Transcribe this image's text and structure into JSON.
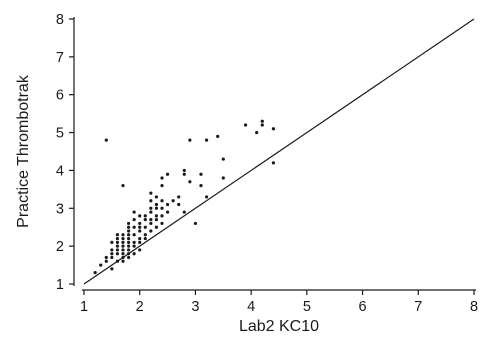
{
  "chart_data": {
    "type": "scatter",
    "title": "",
    "xlabel": "Lab2 KC10",
    "ylabel": "Practice Thrombotrak",
    "xlim": [
      1,
      8
    ],
    "ylim": [
      1,
      8
    ],
    "x_ticks": [
      "1",
      "2",
      "3",
      "4",
      "5",
      "6",
      "7",
      "8"
    ],
    "y_ticks": [
      "1",
      "2",
      "3",
      "4",
      "5",
      "6",
      "7",
      "8"
    ],
    "grid": false,
    "legend": "none",
    "reference_line": {
      "label": "",
      "points": [
        [
          1,
          1
        ],
        [
          8,
          8
        ]
      ]
    },
    "points": [
      [
        1.2,
        1.3
      ],
      [
        1.3,
        1.5
      ],
      [
        1.4,
        1.6
      ],
      [
        1.4,
        1.7
      ],
      [
        1.5,
        1.7
      ],
      [
        1.5,
        1.8
      ],
      [
        1.5,
        1.9
      ],
      [
        1.5,
        2.1
      ],
      [
        1.5,
        1.4
      ],
      [
        1.6,
        1.6
      ],
      [
        1.6,
        1.8
      ],
      [
        1.6,
        1.9
      ],
      [
        1.6,
        2.0
      ],
      [
        1.6,
        2.1
      ],
      [
        1.6,
        2.2
      ],
      [
        1.6,
        2.3
      ],
      [
        1.7,
        1.6
      ],
      [
        1.7,
        1.7
      ],
      [
        1.7,
        1.8
      ],
      [
        1.7,
        1.9
      ],
      [
        1.7,
        2.0
      ],
      [
        1.7,
        2.1
      ],
      [
        1.7,
        2.2
      ],
      [
        1.7,
        2.3
      ],
      [
        1.8,
        1.7
      ],
      [
        1.8,
        1.8
      ],
      [
        1.8,
        1.9
      ],
      [
        1.8,
        2.0
      ],
      [
        1.8,
        2.1
      ],
      [
        1.8,
        2.2
      ],
      [
        1.8,
        2.3
      ],
      [
        1.8,
        2.4
      ],
      [
        1.8,
        2.5
      ],
      [
        1.8,
        2.6
      ],
      [
        1.9,
        1.8
      ],
      [
        1.9,
        2.0
      ],
      [
        1.9,
        2.1
      ],
      [
        1.9,
        2.3
      ],
      [
        1.9,
        2.5
      ],
      [
        1.9,
        2.7
      ],
      [
        1.9,
        2.9
      ],
      [
        2.0,
        1.9
      ],
      [
        2.0,
        2.1
      ],
      [
        2.0,
        2.2
      ],
      [
        2.0,
        2.4
      ],
      [
        2.0,
        2.5
      ],
      [
        2.0,
        2.6
      ],
      [
        2.0,
        2.8
      ],
      [
        2.1,
        2.2
      ],
      [
        2.1,
        2.3
      ],
      [
        2.1,
        2.5
      ],
      [
        2.1,
        2.7
      ],
      [
        2.1,
        2.8
      ],
      [
        2.2,
        2.4
      ],
      [
        2.2,
        2.6
      ],
      [
        2.2,
        2.7
      ],
      [
        2.2,
        2.9
      ],
      [
        2.2,
        3.0
      ],
      [
        2.2,
        3.2
      ],
      [
        2.2,
        3.4
      ],
      [
        2.3,
        2.5
      ],
      [
        2.3,
        2.7
      ],
      [
        2.3,
        2.8
      ],
      [
        2.3,
        3.0
      ],
      [
        2.3,
        3.1
      ],
      [
        2.3,
        3.3
      ],
      [
        2.4,
        2.6
      ],
      [
        2.4,
        2.8
      ],
      [
        2.4,
        3.0
      ],
      [
        2.4,
        3.2
      ],
      [
        2.4,
        3.6
      ],
      [
        2.4,
        3.8
      ],
      [
        2.5,
        2.9
      ],
      [
        2.5,
        3.1
      ],
      [
        2.5,
        3.9
      ],
      [
        2.6,
        3.2
      ],
      [
        2.7,
        3.1
      ],
      [
        2.7,
        3.3
      ],
      [
        2.8,
        2.9
      ],
      [
        2.8,
        3.9
      ],
      [
        2.8,
        4.0
      ],
      [
        2.9,
        3.7
      ],
      [
        2.9,
        4.8
      ],
      [
        3.0,
        2.6
      ],
      [
        3.1,
        3.9
      ],
      [
        3.1,
        3.6
      ],
      [
        3.2,
        3.3
      ],
      [
        3.2,
        4.8
      ],
      [
        3.4,
        4.9
      ],
      [
        3.5,
        4.3
      ],
      [
        3.5,
        3.8
      ],
      [
        3.9,
        5.2
      ],
      [
        4.1,
        5.0
      ],
      [
        4.2,
        5.2
      ],
      [
        4.2,
        5.3
      ],
      [
        4.4,
        5.1
      ],
      [
        4.4,
        4.2
      ],
      [
        1.4,
        4.8
      ],
      [
        1.7,
        3.6
      ]
    ]
  }
}
